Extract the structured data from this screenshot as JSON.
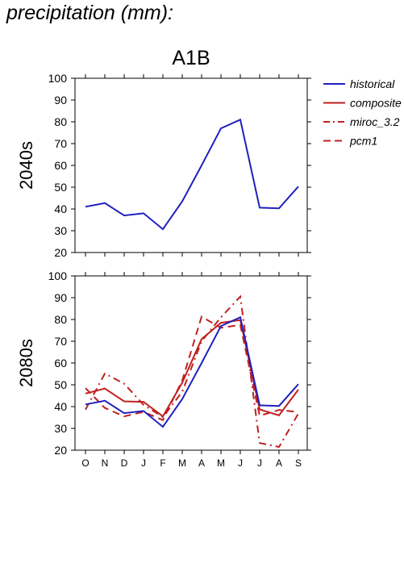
{
  "page": {
    "title": "precipitation (mm):"
  },
  "chart_data": {
    "type": "line",
    "title": "A1B",
    "categories": [
      "O",
      "N",
      "D",
      "J",
      "F",
      "M",
      "A",
      "M",
      "J",
      "J",
      "A",
      "S"
    ],
    "ylim": [
      20,
      100
    ],
    "yticks": [
      20,
      30,
      40,
      50,
      60,
      70,
      80,
      90,
      100
    ],
    "grid": false,
    "legend_position": "right",
    "legend": [
      {
        "name": "historical",
        "color": "#2020c0",
        "dash": "solid"
      },
      {
        "name": "composite",
        "color": "#c02020",
        "dash": "solid"
      },
      {
        "name": "miroc_3.2",
        "color": "#c02020",
        "dash": "dashdot"
      },
      {
        "name": "pcm1",
        "color": "#c02020",
        "dash": "dashed"
      }
    ],
    "panels": [
      {
        "label": "2040s",
        "series": [
          {
            "name": "historical",
            "values": [
              41,
              42.7,
              37,
              38,
              30.7,
              43.5,
              60,
              77,
              81,
              40.6,
              40.3,
              50.3
            ]
          }
        ]
      },
      {
        "label": "2080s",
        "series": [
          {
            "name": "historical",
            "values": [
              41,
              42.7,
              37,
              38,
              30.7,
              43.5,
              60,
              77,
              81,
              40.6,
              40.3,
              50.3
            ]
          },
          {
            "name": "composite",
            "values": [
              46,
              48.3,
              42.4,
              42.2,
              35.5,
              51,
              71,
              78.5,
              79.7,
              38.7,
              36,
              47.8
            ]
          },
          {
            "name": "miroc_3.2",
            "values": [
              38.6,
              55.2,
              50.5,
              40.8,
              35.2,
              46.8,
              70,
              81,
              90.5,
              23.3,
              21.5,
              36.8
            ]
          },
          {
            "name": "pcm1",
            "values": [
              48.5,
              39.4,
              35.5,
              37.6,
              33.8,
              52,
              81.3,
              76.2,
              77.5,
              35.8,
              38.5,
              37.5
            ]
          }
        ]
      }
    ]
  }
}
